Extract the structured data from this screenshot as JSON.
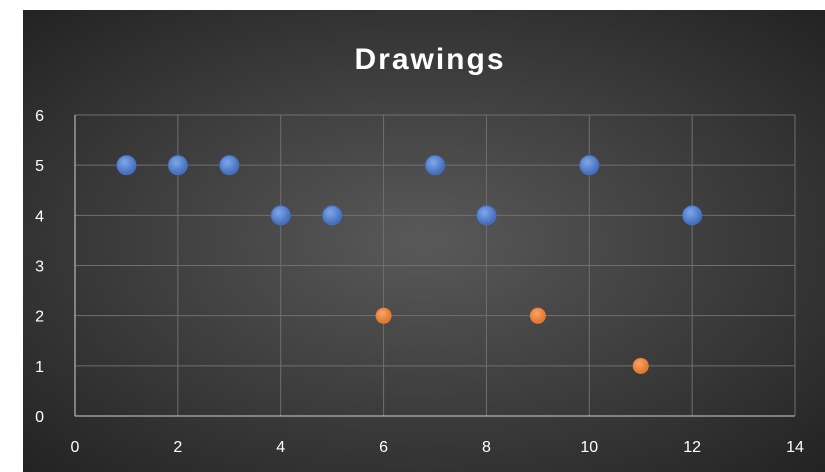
{
  "chart_data": {
    "type": "scatter",
    "title": "Drawings",
    "xlabel": "",
    "ylabel": "",
    "xlim": [
      0,
      14
    ],
    "ylim": [
      0,
      6
    ],
    "x_ticks": [
      0,
      2,
      4,
      6,
      8,
      10,
      12,
      14
    ],
    "y_ticks": [
      0,
      1,
      2,
      3,
      4,
      5,
      6
    ],
    "grid": true,
    "legend": "none",
    "series": [
      {
        "color": "#4472c4",
        "points": [
          [
            1,
            5
          ],
          [
            2,
            5
          ],
          [
            3,
            5
          ],
          [
            4,
            4
          ],
          [
            5,
            4
          ],
          [
            7,
            5
          ],
          [
            8,
            4
          ],
          [
            10,
            5
          ],
          [
            12,
            4
          ]
        ]
      },
      {
        "color": "#ed7d31",
        "points": [
          [
            6,
            2
          ],
          [
            9,
            2
          ],
          [
            11,
            1
          ]
        ]
      }
    ]
  },
  "colors": {
    "background_center": "#595959",
    "background_edge": "#1f1f1f",
    "gridline": "#6f6f6f",
    "text": "#ffffff"
  }
}
